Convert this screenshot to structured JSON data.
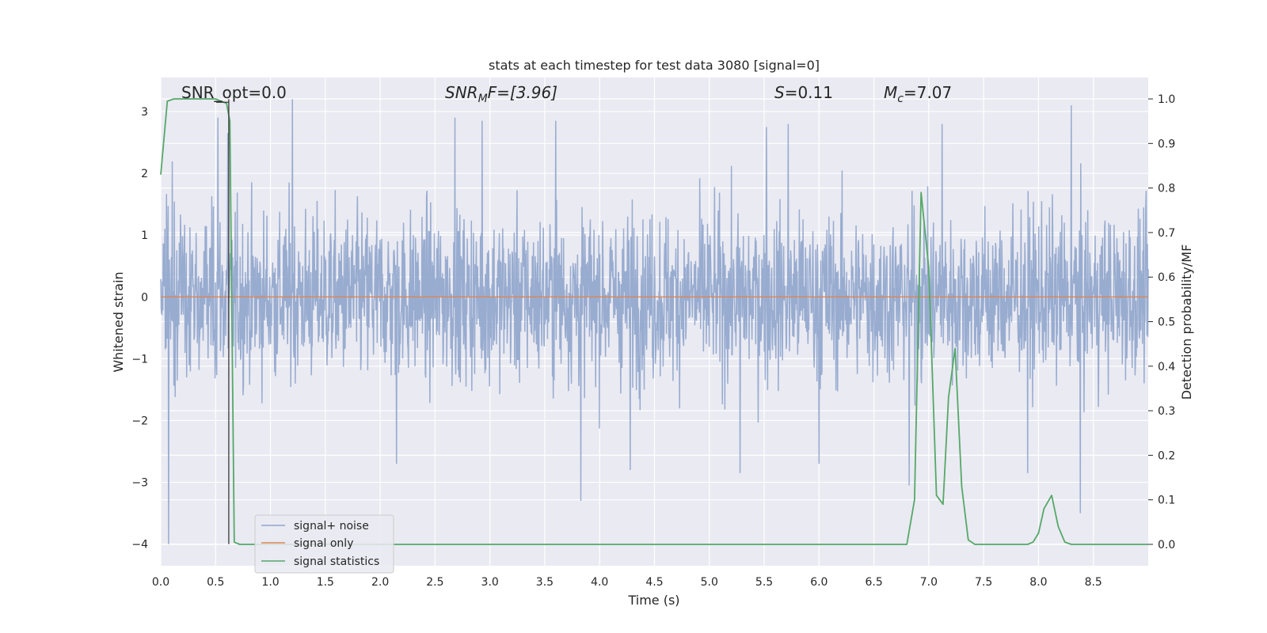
{
  "chart_data": {
    "type": "line",
    "title": "stats at each timestep for test data 3080 [signal=0]",
    "xlabel": "Time (s)",
    "ylabel": "Whitened strain",
    "y2label": "Detection probability/MF",
    "xlim": [
      0.0,
      9.0
    ],
    "ylim": [
      -4.35,
      3.55
    ],
    "y2lim": [
      -0.048,
      1.048
    ],
    "xticks": [
      "0.0",
      "0.5",
      "1.0",
      "1.5",
      "2.0",
      "2.5",
      "3.0",
      "3.5",
      "4.0",
      "4.5",
      "5.0",
      "5.5",
      "6.0",
      "6.5",
      "7.0",
      "7.5",
      "8.0",
      "8.5"
    ],
    "yticks": [
      "3",
      "2",
      "1",
      "0",
      "−1",
      "−2",
      "−3",
      "−4"
    ],
    "y2ticks": [
      "1.0",
      "0.9",
      "0.8",
      "0.7",
      "0.6",
      "0.5",
      "0.4",
      "0.3",
      "0.2",
      "0.1",
      "0.0"
    ],
    "grid": true,
    "legend_position": "lower-left",
    "annotations": {
      "snr_opt": "SNR_opt=0.0",
      "snr_mf_base": "SNR",
      "snr_mf_sub": "M",
      "snr_mf_tail": "F=[3.96]",
      "s_var": "S",
      "s_value": "=0.11",
      "mc_base": "M",
      "mc_sub": "c",
      "mc_value": "=7.07"
    },
    "series": [
      {
        "name": "signal+ noise",
        "color": "#8fa5cc",
        "note_shape": "dense noise band between approx -1.8 and 1.8 with excursions",
        "envelope_x": [
          0.0,
          0.5,
          1.0,
          1.5,
          2.0,
          2.5,
          3.0,
          3.5,
          4.0,
          4.5,
          5.0,
          5.5,
          6.0,
          6.5,
          7.0,
          7.5,
          8.0,
          8.5,
          9.0
        ],
        "spike_x": [
          0.07,
          0.52,
          0.61,
          1.2,
          2.15,
          2.68,
          2.93,
          3.6,
          3.83,
          4.28,
          5.28,
          5.52,
          5.72,
          6.0,
          6.82,
          7.12,
          7.9,
          8.3,
          8.38
        ],
        "spike_y": [
          -4.0,
          2.9,
          2.65,
          3.2,
          -2.7,
          2.9,
          2.85,
          2.85,
          -3.3,
          -2.8,
          -2.85,
          2.75,
          2.8,
          -2.7,
          -3.05,
          2.8,
          -2.85,
          3.1,
          -3.5
        ]
      },
      {
        "name": "signal only",
        "color": "#dd8452",
        "x": [
          0.0,
          9.0
        ],
        "values": [
          0.0,
          0.0
        ]
      },
      {
        "name": "signal statistics",
        "color": "#55a868",
        "axis": "right",
        "x": [
          0.0,
          0.06,
          0.12,
          0.5,
          0.6,
          0.63,
          0.67,
          0.72,
          0.8,
          6.8,
          6.87,
          6.93,
          7.0,
          7.07,
          7.13,
          7.18,
          7.24,
          7.3,
          7.36,
          7.42,
          7.5,
          7.9,
          7.95,
          8.0,
          8.05,
          8.12,
          8.18,
          8.24,
          8.3,
          8.35,
          8.6,
          9.0
        ],
        "values": [
          0.83,
          0.995,
          1.0,
          1.0,
          0.99,
          0.95,
          0.005,
          0.0,
          0.0,
          0.0,
          0.1,
          0.79,
          0.62,
          0.11,
          0.09,
          0.33,
          0.44,
          0.13,
          0.01,
          0.0,
          0.0,
          0.0,
          0.005,
          0.025,
          0.08,
          0.11,
          0.04,
          0.005,
          0.0,
          0.0,
          0.0,
          0.0
        ]
      }
    ],
    "marker_line_x": 0.62
  }
}
